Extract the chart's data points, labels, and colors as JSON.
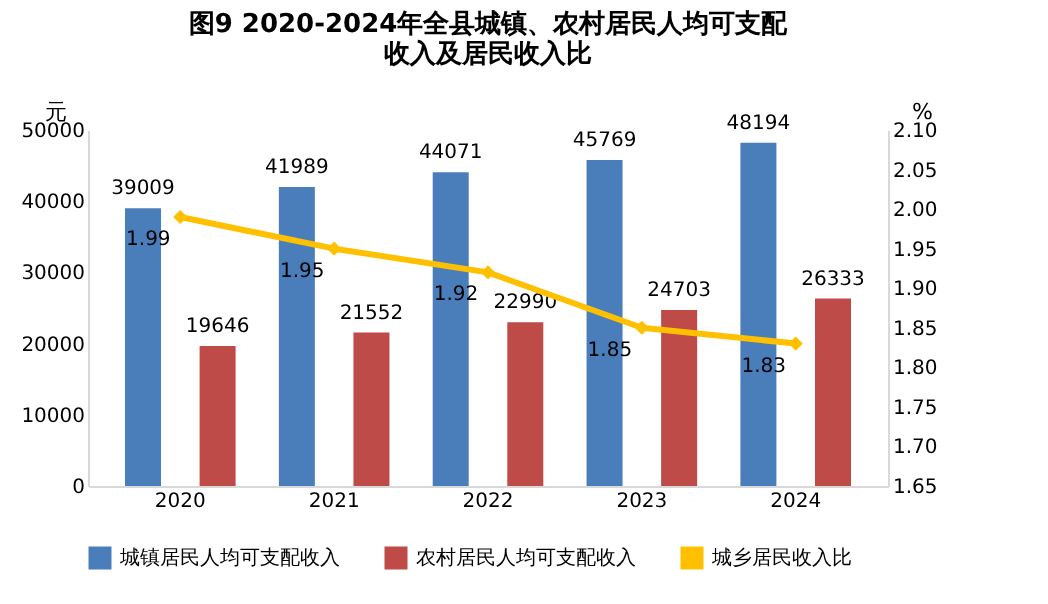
{
  "chart_data": {
    "type": "bar",
    "title": "图9 2020-2024年全县城镇、农村居民人均可支配收入及居民收入比",
    "categories": [
      "2020",
      "2021",
      "2022",
      "2023",
      "2024"
    ],
    "series": [
      {
        "name": "城镇居民人均可支配收入",
        "color": "#4a7ebb",
        "values": [
          39009,
          41989,
          44071,
          45769,
          48194
        ]
      },
      {
        "name": "农村居民人均可支配收入",
        "color": "#be4b48",
        "values": [
          19646,
          21552,
          22990,
          24703,
          26333
        ]
      },
      {
        "name": "城乡居民收入比",
        "type": "line",
        "axis": "y2",
        "color": "#ffc000",
        "values": [
          1.99,
          1.95,
          1.92,
          1.85,
          1.83
        ]
      }
    ],
    "ylabel": "元",
    "y2label": "%",
    "ylim": [
      0,
      50000
    ],
    "yticks": [
      0,
      10000,
      20000,
      30000,
      40000,
      50000
    ],
    "y2lim": [
      1.65,
      2.1
    ],
    "y2ticks": [
      1.65,
      {
        "value": 1.7,
        "label": "1.70"
      },
      1.75,
      {
        "value": 1.8,
        "label": "1.80"
      },
      1.85,
      {
        "value": 1.9,
        "label": "1.90"
      },
      1.95,
      {
        "value": 2.0,
        "label": "2.00"
      },
      2.05,
      {
        "value": 2.1,
        "label": "2.10"
      }
    ],
    "data_labels": true,
    "legend": "bottom",
    "marker": "diamond"
  }
}
